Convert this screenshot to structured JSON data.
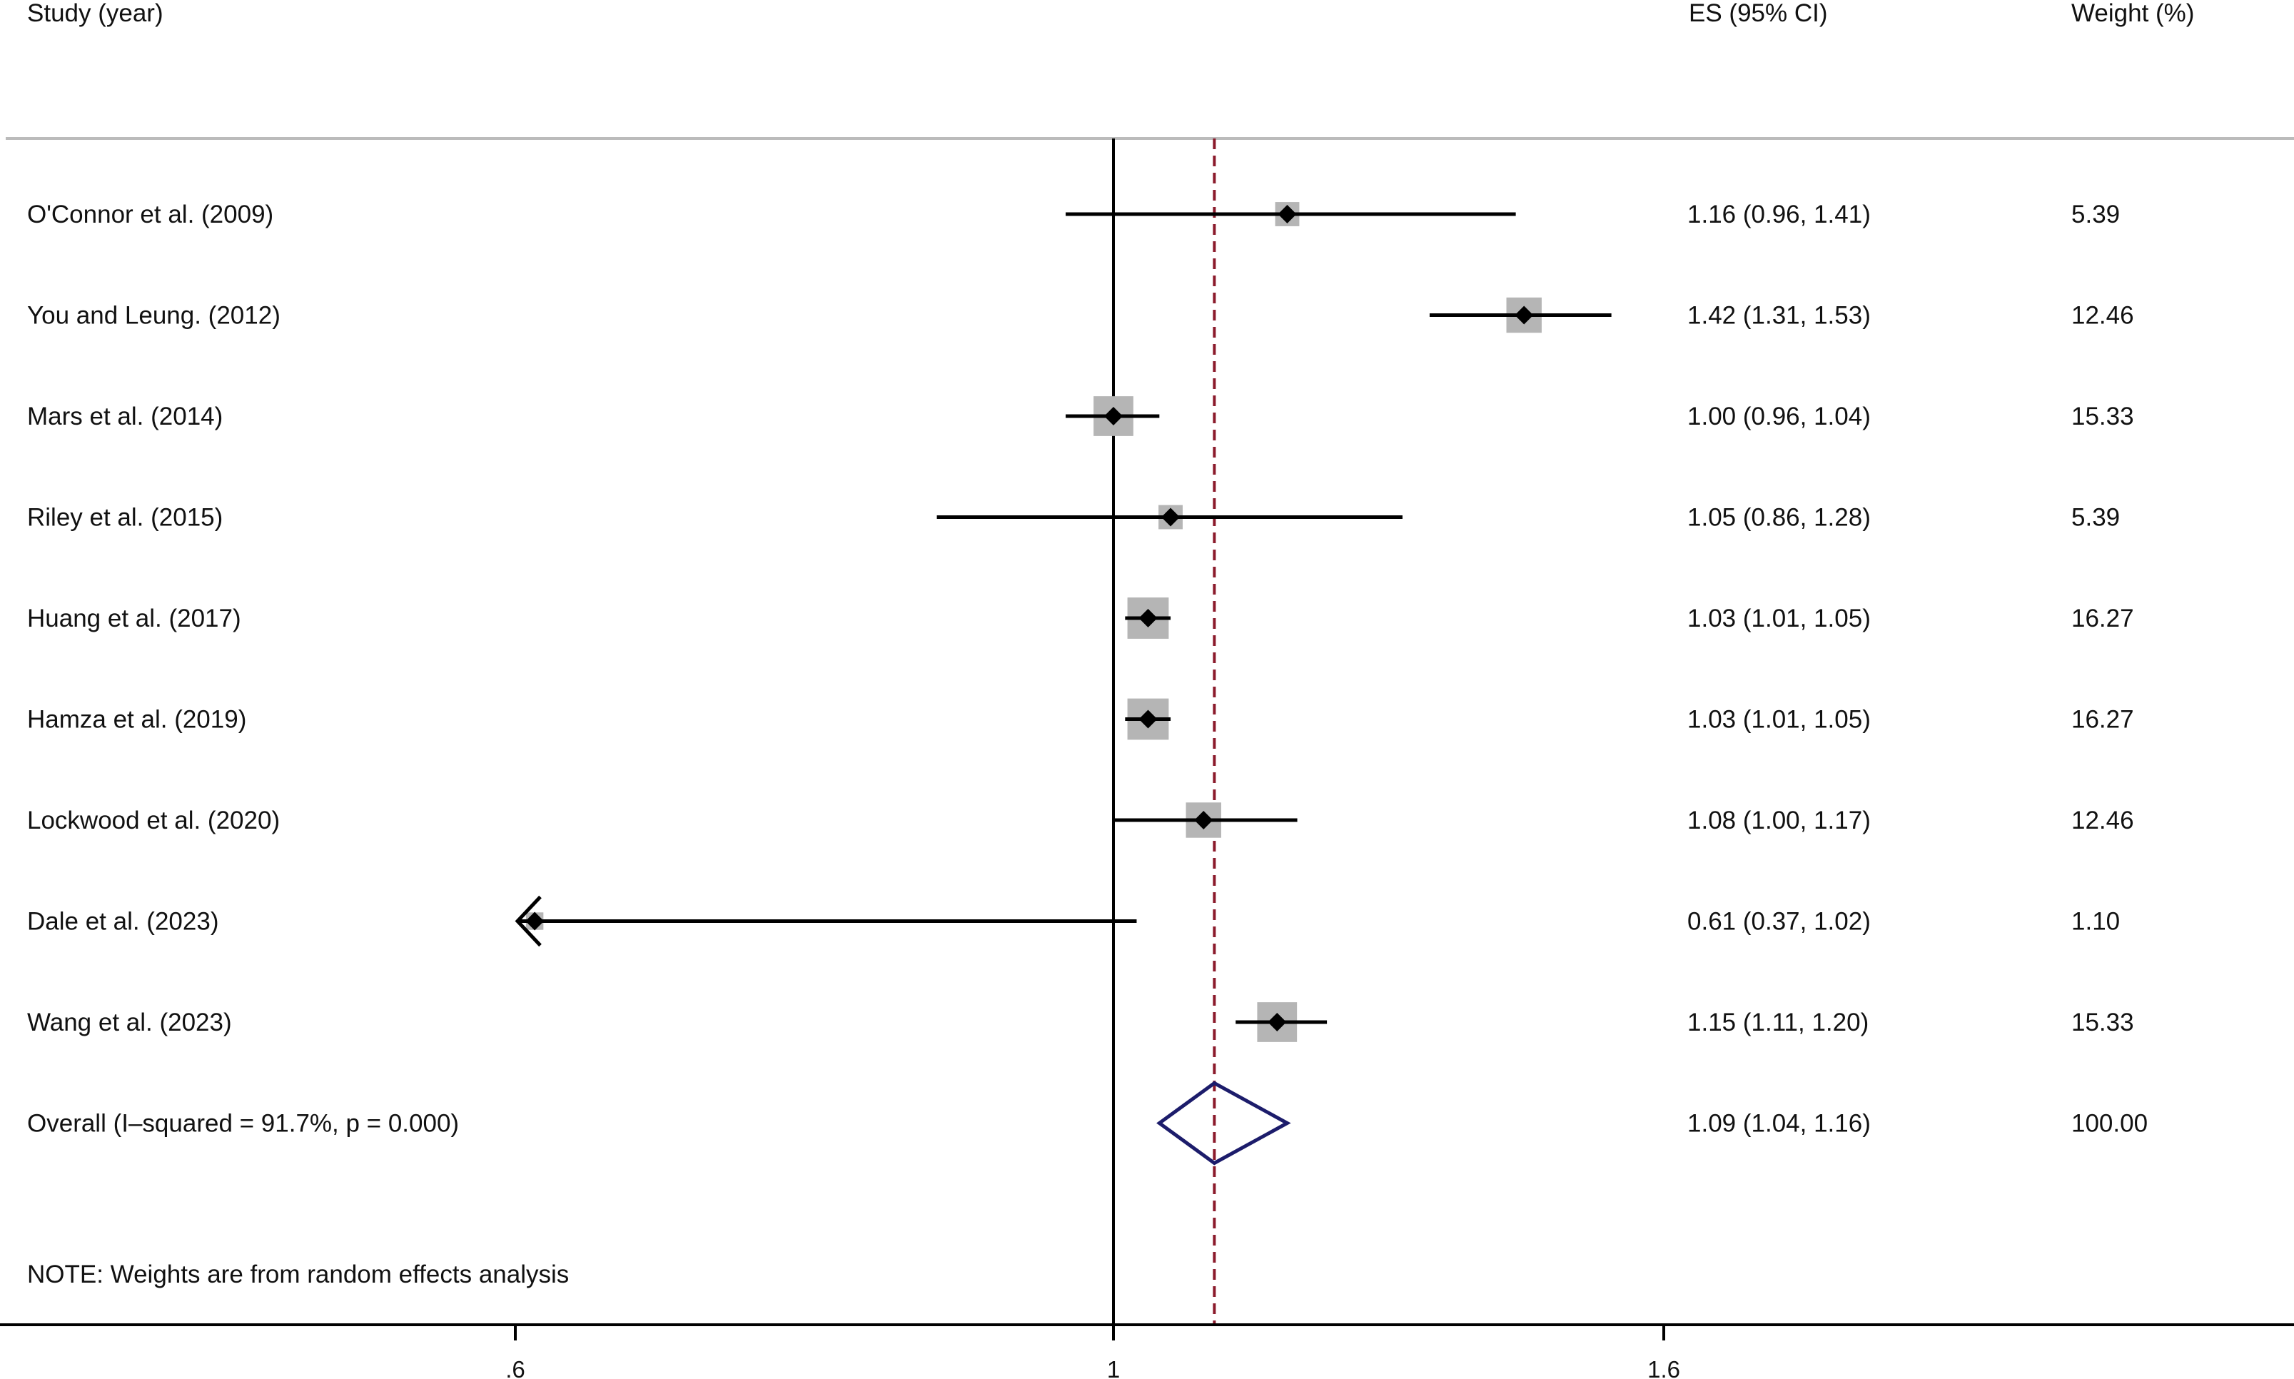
{
  "chart_data": {
    "type": "forest",
    "columns": {
      "study": "Study (year)",
      "es": "ES (95% CI)",
      "weight": "Weight (%)"
    },
    "studies": [
      {
        "label": "O'Connor et al. (2009)",
        "es": 1.16,
        "lo": 0.96,
        "hi": 1.41,
        "es_text": "1.16 (0.96, 1.41)",
        "weight": 5.39,
        "weight_text": "5.39"
      },
      {
        "label": "You and Leung. (2012)",
        "es": 1.42,
        "lo": 1.31,
        "hi": 1.53,
        "es_text": "1.42 (1.31, 1.53)",
        "weight": 12.46,
        "weight_text": "12.46"
      },
      {
        "label": "Mars  et al. (2014)",
        "es": 1.0,
        "lo": 0.96,
        "hi": 1.04,
        "es_text": "1.00 (0.96, 1.04)",
        "weight": 15.33,
        "weight_text": "15.33"
      },
      {
        "label": "Riley et al. (2015)",
        "es": 1.05,
        "lo": 0.86,
        "hi": 1.28,
        "es_text": "1.05 (0.86, 1.28)",
        "weight": 5.39,
        "weight_text": "5.39"
      },
      {
        "label": "Huang et al. (2017)",
        "es": 1.03,
        "lo": 1.01,
        "hi": 1.05,
        "es_text": "1.03 (1.01, 1.05)",
        "weight": 16.27,
        "weight_text": "16.27"
      },
      {
        "label": "Hamza et al. (2019)",
        "es": 1.03,
        "lo": 1.01,
        "hi": 1.05,
        "es_text": "1.03 (1.01, 1.05)",
        "weight": 16.27,
        "weight_text": "16.27"
      },
      {
        "label": "Lockwood et al. (2020)",
        "es": 1.08,
        "lo": 1.0,
        "hi": 1.17,
        "es_text": "1.08 (1.00, 1.17)",
        "weight": 12.46,
        "weight_text": "12.46"
      },
      {
        "label": "Dale et al. (2023)",
        "es": 0.61,
        "lo": 0.37,
        "hi": 1.02,
        "es_text": "0.61 (0.37, 1.02)",
        "weight": 1.1,
        "weight_text": "1.10"
      },
      {
        "label": "Wang et al. (2023)",
        "es": 1.15,
        "lo": 1.11,
        "hi": 1.2,
        "es_text": "1.15 (1.11, 1.20)",
        "weight": 15.33,
        "weight_text": "15.33"
      }
    ],
    "overall": {
      "label": "Overall  (I–squared = 91.7%, p = 0.000)",
      "es": 1.09,
      "lo": 1.04,
      "hi": 1.16,
      "es_text": "1.09 (1.04, 1.16)",
      "weight_text": "100.00"
    },
    "note": "NOTE: Weights are from random effects analysis",
    "x_axis": {
      "scale": "log",
      "range": [
        0.6,
        1.6
      ],
      "ticks": [
        {
          "value": 0.6,
          "label": ".6"
        },
        {
          "value": 1,
          "label": "1"
        },
        {
          "value": 1.6,
          "label": "1.6"
        }
      ]
    },
    "null_line": 1,
    "overall_line_style": "dashed",
    "colors": {
      "ci_line": "#000000",
      "point": "#000000",
      "weight_box": "#b5b5b5",
      "overall_diamond": "#1c1c6b",
      "overall_line": "#8b1a2b",
      "separator": "#bbbbbb",
      "axis": "#000000"
    }
  }
}
